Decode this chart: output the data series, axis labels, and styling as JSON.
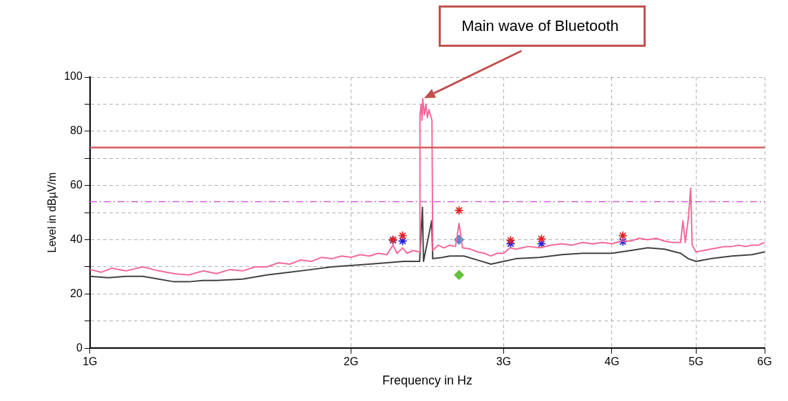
{
  "chart_data": {
    "type": "line",
    "xlabel": "Frequency in Hz",
    "ylabel": "Level in dBµV/m",
    "log": "x",
    "grid": true,
    "legend": false,
    "xlim": [
      1,
      6
    ],
    "xticks": [
      {
        "value": 1,
        "label": "1G"
      },
      {
        "value": 2,
        "label": "2G"
      },
      {
        "value": 3,
        "label": "3G"
      },
      {
        "value": 4,
        "label": "4G"
      },
      {
        "value": 5,
        "label": "5G"
      },
      {
        "value": 6,
        "label": "6G"
      }
    ],
    "ylim": [
      0,
      100
    ],
    "yticks": [
      0,
      {
        "value": 10,
        "label": null
      },
      20,
      {
        "value": 30,
        "label": null
      },
      40,
      {
        "value": 50,
        "label": null
      },
      60,
      {
        "value": 70,
        "label": null
      },
      80,
      {
        "value": 90,
        "label": null
      },
      100
    ],
    "ref_lines": [
      {
        "axis": "y",
        "value": 74,
        "color": "#d05a60",
        "line_style": "solid"
      },
      {
        "axis": "y",
        "value": 54,
        "color": "#d060d8",
        "line_style": "dashed"
      }
    ],
    "annotations": [
      "Main wave of Bluetooth"
    ],
    "series": [
      {
        "type": "line",
        "color": "#f4679a",
        "marker": "none",
        "x": [
          1.0,
          1.03,
          1.06,
          1.1,
          1.15,
          1.2,
          1.25,
          1.3,
          1.35,
          1.4,
          1.45,
          1.5,
          1.55,
          1.6,
          1.65,
          1.7,
          1.75,
          1.8,
          1.85,
          1.9,
          1.95,
          2.0,
          2.05,
          2.1,
          2.15,
          2.2,
          2.236,
          2.26,
          2.294,
          2.32,
          2.36,
          2.4,
          2.402,
          2.41,
          2.415,
          2.42,
          2.43,
          2.44,
          2.45,
          2.46,
          2.47,
          2.48,
          2.485,
          2.52,
          2.56,
          2.6,
          2.64,
          2.665,
          2.69,
          2.75,
          2.8,
          2.85,
          2.9,
          2.95,
          3.0,
          3.05,
          3.1,
          3.2,
          3.3,
          3.4,
          3.5,
          3.6,
          3.7,
          3.8,
          3.9,
          4.0,
          4.1,
          4.2,
          4.3,
          4.4,
          4.5,
          4.6,
          4.7,
          4.8,
          4.83,
          4.86,
          4.9,
          4.93,
          4.95,
          5.0,
          5.1,
          5.2,
          5.3,
          5.4,
          5.5,
          5.6,
          5.7,
          5.8,
          5.9,
          6.0
        ],
        "values": [
          29,
          28,
          29.5,
          28.5,
          30,
          28.5,
          27.5,
          27,
          28.5,
          27.5,
          29,
          28.5,
          30,
          30,
          31.5,
          31,
          32.5,
          32,
          33.5,
          33,
          34,
          33.5,
          34.5,
          34,
          35,
          34.5,
          38,
          35,
          37,
          35,
          36,
          35.5,
          86,
          90,
          84,
          92,
          86,
          90,
          85,
          88,
          86,
          84,
          36,
          38,
          37,
          38,
          37.5,
          46,
          37,
          36.5,
          35.5,
          35,
          34,
          35,
          35,
          37,
          36.5,
          37.5,
          37,
          38,
          38.5,
          38,
          39,
          38.5,
          39,
          38.5,
          39.5,
          39.5,
          40.5,
          40,
          40.5,
          39.5,
          39,
          39,
          47,
          39,
          48,
          59,
          38,
          35.5,
          36,
          36.5,
          37,
          37.5,
          37.5,
          38,
          37.5,
          38,
          38,
          39
        ]
      },
      {
        "type": "line",
        "color": "#404040",
        "marker": "none",
        "x": [
          1.0,
          1.05,
          1.1,
          1.15,
          1.2,
          1.25,
          1.3,
          1.35,
          1.4,
          1.5,
          1.6,
          1.7,
          1.8,
          1.9,
          2.0,
          2.1,
          2.2,
          2.3,
          2.4,
          2.418,
          2.425,
          2.478,
          2.485,
          2.55,
          2.6,
          2.7,
          2.8,
          2.9,
          3.0,
          3.1,
          3.3,
          3.5,
          3.7,
          4.0,
          4.2,
          4.4,
          4.6,
          4.8,
          4.9,
          5.0,
          5.1,
          5.2,
          5.5,
          5.8,
          6.0
        ],
        "values": [
          26.5,
          26,
          26.5,
          26.5,
          25.5,
          24.5,
          24.5,
          25,
          25,
          25.5,
          27,
          28,
          29,
          30,
          30.5,
          31,
          31.5,
          32,
          32,
          52,
          32,
          47,
          33,
          33.5,
          34,
          34,
          32.5,
          31,
          32,
          33,
          33.5,
          34.5,
          35,
          35,
          36,
          37,
          36.5,
          35,
          33,
          32,
          32.5,
          33,
          34,
          34.5,
          35.5
        ]
      },
      {
        "type": "scatter",
        "color": "#e02020",
        "marker": "cross",
        "x": [
          2.236,
          2.294,
          2.665,
          3.056,
          3.317,
          4.117
        ],
        "values": [
          40,
          41.5,
          50.8,
          39.8,
          40.3,
          41.5
        ]
      },
      {
        "type": "scatter",
        "color": "#2020e0",
        "marker": "cross",
        "x": [
          2.236,
          2.294,
          3.056,
          3.317,
          4.117
        ],
        "values": [
          39.8,
          39.5,
          38.5,
          38.5,
          39.3
        ]
      },
      {
        "type": "scatter",
        "color": "#4a90d0",
        "marker": "diamond",
        "x": [
          2.665
        ],
        "values": [
          40
        ]
      },
      {
        "type": "scatter",
        "color": "#66c040",
        "marker": "diamond",
        "x": [
          2.665
        ],
        "values": [
          27
        ]
      }
    ]
  }
}
